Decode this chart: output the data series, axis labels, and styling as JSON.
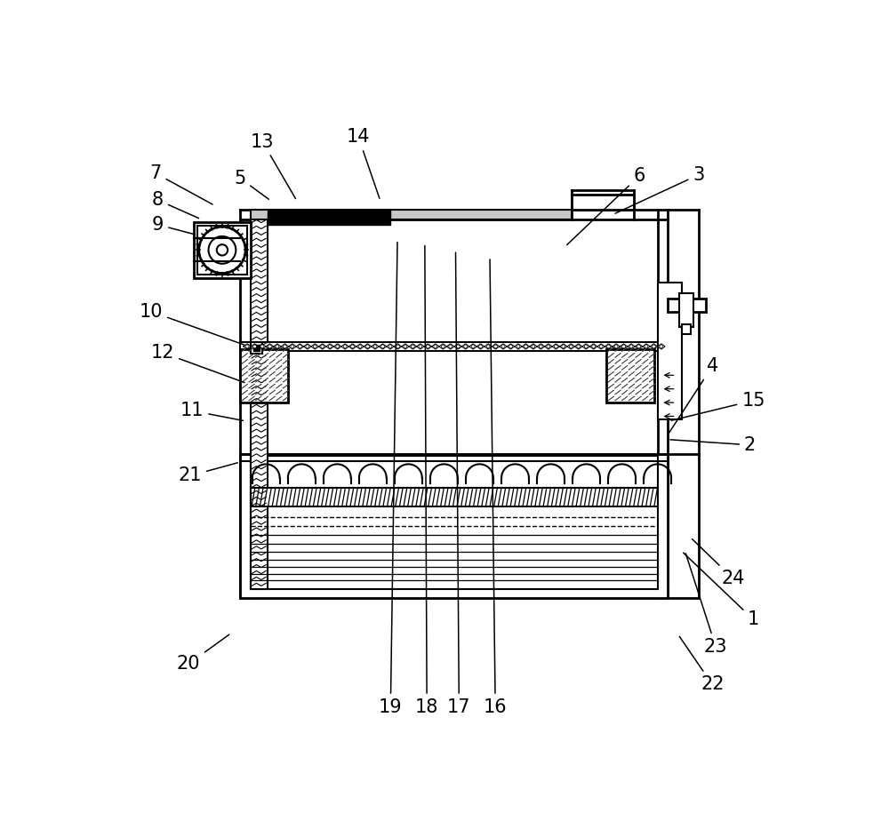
{
  "bg": "#ffffff",
  "figsize": [
    10.0,
    9.33
  ],
  "dpi": 100,
  "annotations": [
    [
      "1",
      935,
      760,
      830,
      660
    ],
    [
      "2",
      930,
      505,
      810,
      497
    ],
    [
      "3",
      855,
      110,
      730,
      168
    ],
    [
      "4",
      875,
      390,
      810,
      490
    ],
    [
      "5",
      185,
      115,
      230,
      148
    ],
    [
      "6",
      768,
      112,
      660,
      215
    ],
    [
      "7",
      62,
      108,
      148,
      155
    ],
    [
      "8",
      65,
      147,
      128,
      175
    ],
    [
      "9",
      65,
      183,
      122,
      198
    ],
    [
      "10",
      55,
      310,
      195,
      360
    ],
    [
      "11",
      115,
      455,
      193,
      470
    ],
    [
      "12",
      72,
      370,
      195,
      415
    ],
    [
      "13",
      218,
      62,
      268,
      148
    ],
    [
      "14",
      358,
      55,
      390,
      148
    ],
    [
      "15",
      935,
      440,
      812,
      470
    ],
    [
      "16",
      558,
      888,
      550,
      230
    ],
    [
      "17",
      505,
      888,
      500,
      220
    ],
    [
      "18",
      458,
      888,
      455,
      210
    ],
    [
      "19",
      405,
      888,
      415,
      205
    ],
    [
      "20",
      110,
      825,
      172,
      780
    ],
    [
      "21",
      112,
      550,
      185,
      530
    ],
    [
      "22",
      875,
      855,
      825,
      782
    ],
    [
      "23",
      880,
      800,
      835,
      660
    ],
    [
      "24",
      905,
      700,
      843,
      640
    ]
  ]
}
